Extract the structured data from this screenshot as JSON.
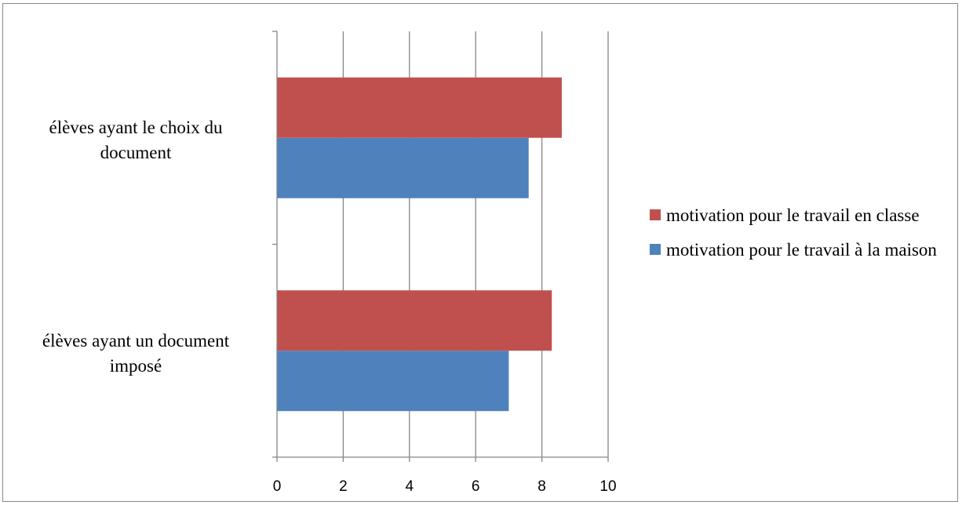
{
  "chart_data": {
    "type": "bar",
    "orientation": "horizontal",
    "categories": [
      "élèves ayant un document imposé",
      "élèves ayant le choix du document"
    ],
    "series": [
      {
        "name": "motivation pour le travail à la maison",
        "color": "#4F81BD",
        "values": [
          7.0,
          7.6
        ]
      },
      {
        "name": "motivation pour le travail en classe",
        "color": "#C0504D",
        "values": [
          8.3,
          8.6
        ]
      }
    ],
    "xlim": [
      0,
      10
    ],
    "xticks": [
      "0",
      "2",
      "4",
      "6",
      "8",
      "10"
    ],
    "grid": "vertical",
    "legend": "right",
    "title": "",
    "xlabel": "",
    "ylabel": ""
  },
  "legend_items": [
    {
      "label": "motivation pour le travail en classe",
      "color": "#C0504D"
    },
    {
      "label": "motivation pour le travail à la maison",
      "color": "#4F81BD"
    }
  ],
  "category_labels": {
    "top": {
      "line1": "élèves ayant le choix du",
      "line2": "document"
    },
    "bottom": {
      "line1": "élèves ayant un document",
      "line2": "imposé"
    }
  }
}
